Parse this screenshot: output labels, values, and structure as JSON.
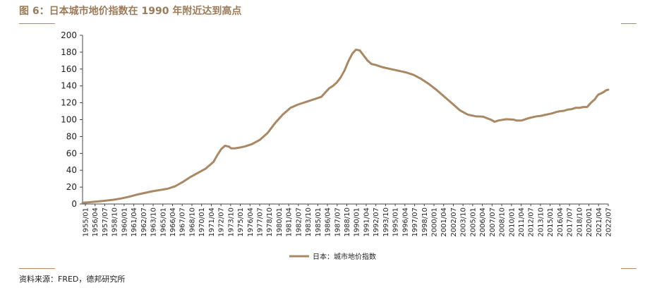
{
  "figure": {
    "title": "图 6：日本城市地价指数在 1990 年附近达到高点",
    "source": "资料来源：FRED，德邦研究所"
  },
  "chart_data": {
    "type": "line",
    "ylim": [
      0,
      200
    ],
    "yticks": [
      0,
      20,
      40,
      60,
      80,
      100,
      120,
      140,
      160,
      180,
      200
    ],
    "xlim": [
      1955.0,
      2023.25
    ],
    "xtick_labels": [
      "1955/01",
      "1956/04",
      "1957/07",
      "1958/10",
      "1960/01",
      "1961/04",
      "1962/07",
      "1963/10",
      "1965/01",
      "1966/04",
      "1967/07",
      "1968/10",
      "1970/01",
      "1971/04",
      "1972/07",
      "1973/10",
      "1975/01",
      "1976/04",
      "1977/07",
      "1978/10",
      "1980/01",
      "1981/04",
      "1982/07",
      "1983/10",
      "1985/01",
      "1986/04",
      "1987/07",
      "1988/10",
      "1990/01",
      "1991/04",
      "1992/07",
      "1993/10",
      "1995/01",
      "1996/04",
      "1997/07",
      "1998/10",
      "2000/01",
      "2001/04",
      "2002/07",
      "2003/10",
      "2005/01",
      "2006/04",
      "2007/07",
      "2008/10",
      "2010/01",
      "2011/04",
      "2012/07",
      "2013/10",
      "2015/01",
      "2016/04",
      "2017/07",
      "2018/10",
      "2020/01",
      "2021/04",
      "2022/07"
    ],
    "grid": false,
    "legend_position": "bottom-center",
    "color": "#a88963",
    "series": [
      {
        "name": "日本：城市地价指数",
        "x": [
          1955.0,
          1956.0,
          1957.0,
          1958.0,
          1959.0,
          1960.0,
          1961.0,
          1962.0,
          1963.0,
          1964.0,
          1965.0,
          1966.0,
          1967.0,
          1968.0,
          1969.0,
          1970.0,
          1971.0,
          1972.0,
          1972.5,
          1973.0,
          1973.5,
          1974.0,
          1974.3,
          1974.8,
          1975.5,
          1976.0,
          1977.0,
          1978.0,
          1979.0,
          1980.0,
          1981.0,
          1982.0,
          1983.0,
          1984.0,
          1985.0,
          1986.0,
          1987.0,
          1987.5,
          1988.0,
          1988.5,
          1989.0,
          1989.5,
          1990.0,
          1990.5,
          1991.0,
          1991.5,
          1992.0,
          1992.5,
          1993.0,
          1994.0,
          1995.0,
          1996.0,
          1997.0,
          1998.0,
          1999.0,
          2000.0,
          2001.0,
          2002.0,
          2003.0,
          2004.0,
          2005.0,
          2006.0,
          2007.0,
          2008.0,
          2008.5,
          2009.0,
          2010.0,
          2011.0,
          2011.3,
          2012.0,
          2012.5,
          2013.0,
          2014.0,
          2014.5,
          2015.0,
          2015.5,
          2016.0,
          2016.5,
          2017.0,
          2017.5,
          2018.0,
          2018.5,
          2019.0,
          2019.5,
          2020.0,
          2020.5,
          2021.0,
          2021.5,
          2021.8,
          2022.0,
          2022.3,
          2022.6,
          2023.0,
          2023.25
        ],
        "y": [
          1.5,
          2.2,
          3.0,
          4.0,
          5.0,
          6.5,
          8.5,
          11.0,
          13.0,
          15.0,
          16.5,
          18.0,
          21.0,
          26.0,
          32.0,
          37.0,
          42.0,
          50.0,
          58.0,
          65.0,
          69.0,
          68.0,
          66.0,
          66.0,
          67.0,
          68.0,
          71.0,
          76.0,
          84.0,
          96.0,
          106.0,
          114.0,
          118.0,
          121.0,
          124.0,
          127.0,
          137.0,
          140.0,
          144.0,
          150.0,
          158.0,
          169.0,
          178.0,
          183.0,
          182.0,
          176.0,
          170.0,
          166.0,
          165.0,
          162.0,
          160.0,
          158.0,
          156.0,
          153.0,
          148.0,
          142.0,
          135.0,
          127.0,
          119.0,
          111.0,
          106.0,
          104.0,
          103.5,
          100.0,
          97.5,
          99.0,
          100.5,
          100.0,
          99.0,
          99.0,
          100.5,
          102.0,
          104.0,
          104.5,
          105.5,
          106.5,
          107.5,
          109.0,
          110.0,
          110.5,
          112.0,
          112.5,
          114.0,
          114.0,
          115.0,
          115.0,
          120.0,
          124.0,
          128.0,
          130.0,
          131.0,
          132.5,
          135.0,
          135.5
        ]
      }
    ]
  }
}
